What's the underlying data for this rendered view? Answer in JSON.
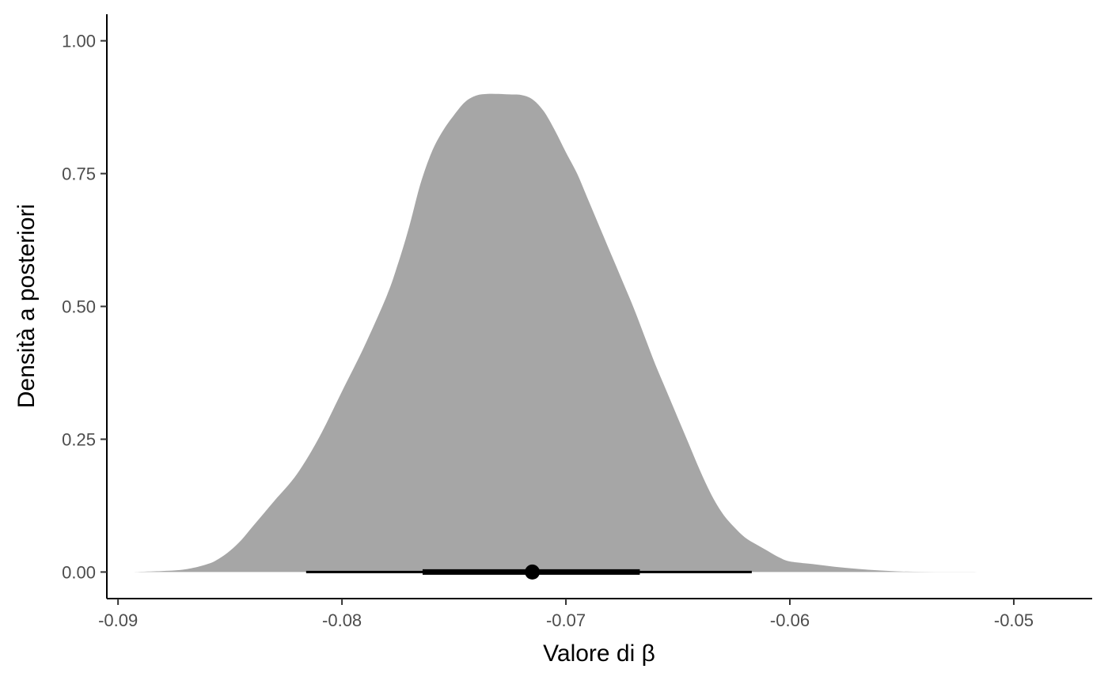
{
  "chart_data": {
    "type": "area",
    "xlabel": "Valore di β",
    "ylabel": "Densità a posteriori",
    "xlim": [
      -0.0905,
      -0.0465
    ],
    "ylim": [
      -0.05,
      1.05
    ],
    "x_ticks": [
      -0.09,
      -0.08,
      -0.07,
      -0.06,
      -0.05
    ],
    "x_tick_labels": [
      "-0.09",
      "-0.08",
      "-0.07",
      "-0.06",
      "-0.05"
    ],
    "y_ticks": [
      0.0,
      0.25,
      0.5,
      0.75,
      1.0
    ],
    "y_tick_labels": [
      "0.00",
      "0.25",
      "0.50",
      "0.75",
      "1.00"
    ],
    "grid": false,
    "density": {
      "x": [
        -0.0894,
        -0.088,
        -0.087,
        -0.086,
        -0.0855,
        -0.085,
        -0.0845,
        -0.084,
        -0.0835,
        -0.083,
        -0.082,
        -0.081,
        -0.08,
        -0.079,
        -0.078,
        -0.0775,
        -0.077,
        -0.0765,
        -0.076,
        -0.0755,
        -0.075,
        -0.0745,
        -0.074,
        -0.0735,
        -0.073,
        -0.0725,
        -0.072,
        -0.0715,
        -0.071,
        -0.0705,
        -0.07,
        -0.0695,
        -0.069,
        -0.0685,
        -0.068,
        -0.0675,
        -0.067,
        -0.0665,
        -0.066,
        -0.0655,
        -0.065,
        -0.0645,
        -0.064,
        -0.0635,
        -0.063,
        -0.0625,
        -0.062,
        -0.0615,
        -0.061,
        -0.0605,
        -0.06,
        -0.059,
        -0.058,
        -0.057,
        -0.056,
        -0.055,
        -0.054,
        -0.053,
        -0.052,
        -0.051,
        -0.0494
      ],
      "y": [
        0.0,
        0.002,
        0.005,
        0.015,
        0.025,
        0.04,
        0.06,
        0.085,
        0.11,
        0.135,
        0.185,
        0.255,
        0.34,
        0.425,
        0.52,
        0.58,
        0.65,
        0.73,
        0.79,
        0.83,
        0.86,
        0.885,
        0.897,
        0.9,
        0.9,
        0.899,
        0.898,
        0.89,
        0.868,
        0.832,
        0.79,
        0.75,
        0.7,
        0.65,
        0.6,
        0.55,
        0.5,
        0.445,
        0.39,
        0.34,
        0.29,
        0.24,
        0.19,
        0.145,
        0.11,
        0.085,
        0.065,
        0.052,
        0.04,
        0.028,
        0.02,
        0.015,
        0.01,
        0.006,
        0.003,
        0.001,
        0.0005,
        0.0002,
        0.0001,
        0.0,
        0.0
      ],
      "fill": "#a6a6a6"
    },
    "point_interval": {
      "point": -0.0715,
      "inner_interval": [
        -0.0764,
        -0.0667
      ],
      "outer_interval": [
        -0.0816,
        -0.0617
      ],
      "color": "#000000"
    }
  }
}
